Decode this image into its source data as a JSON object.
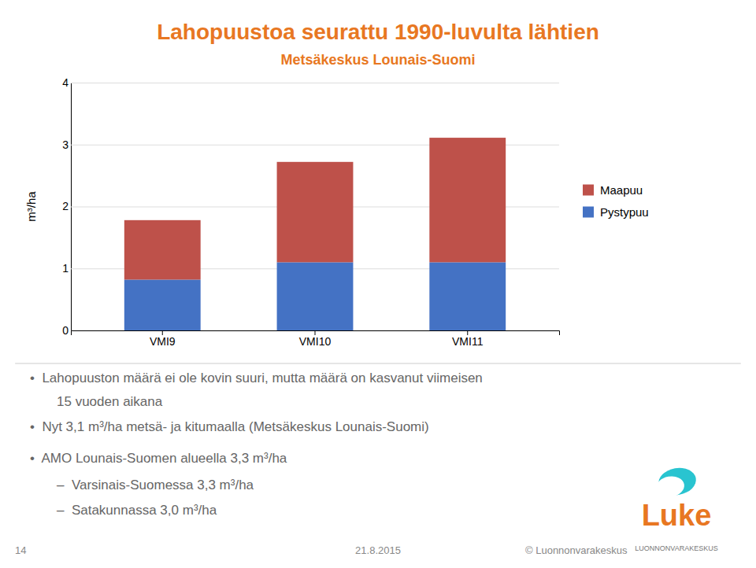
{
  "chart_data": {
    "type": "bar",
    "stacked": true,
    "title": "Lahopuustoa seurattu 1990-luvulta lähtien",
    "subtitle": "Metsäkeskus Lounais-Suomi",
    "categories": [
      "VMI9",
      "VMI10",
      "VMI11"
    ],
    "series": [
      {
        "name": "Pystypuu",
        "color": "#4472C4",
        "values": [
          0.82,
          1.1,
          1.1
        ]
      },
      {
        "name": "Maapuu",
        "color": "#BE514A",
        "values": [
          0.96,
          1.62,
          2.01
        ]
      }
    ],
    "ylabel": "m³/ha",
    "ylim": [
      0,
      4
    ],
    "yticks": [
      0,
      1,
      2,
      3,
      4
    ],
    "grid": true,
    "legend": "right",
    "annotations": [
      "•  Lahopuuston määrä ei ole kovin suuri, mutta määrä on kasvanut viimeisen",
      "15 vuoden aikana",
      "•  Nyt 3,1 m³/ha metsä- ja kitumaalla (Metsäkeskus Lounais-Suomi)",
      "•  AMO Lounais-Suomen alueella 3,3 m³/ha",
      "–  Varsinais-Suomessa 3,3 m³/ha",
      "–  Satakunnassa 3,0 m³/ha",
      "14",
      "21.8.2015",
      "© Luonnonvarakeskus",
      "Luke",
      "LUONNONVARAKESKUS"
    ]
  }
}
